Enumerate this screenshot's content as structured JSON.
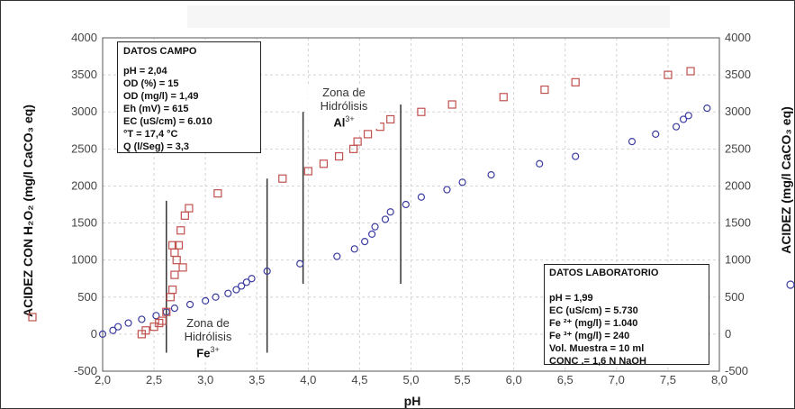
{
  "chart_data": {
    "type": "scatter",
    "xlabel": "pH",
    "ylabel_left": "ACIDEZ CON H₂O₂ (mg/l CaCO₃ eq)",
    "ylabel_right": "ACIDEZ (mg/l CaCO₃ eq)",
    "xlim": [
      2.0,
      8.0
    ],
    "ylim": [
      -500,
      4000
    ],
    "x_ticks": [
      "2,0",
      "2,5",
      "3,0",
      "3,5",
      "4,0",
      "4,5",
      "5,0",
      "5,5",
      "6,0",
      "6,5",
      "7,0",
      "7,5",
      "8,0"
    ],
    "y_ticks": [
      "-500",
      "0",
      "500",
      "1000",
      "1500",
      "2000",
      "2500",
      "3000",
      "3500",
      "4000"
    ],
    "grid": true,
    "series": [
      {
        "marker": "square",
        "color": "#c0504d",
        "points": [
          [
            2.38,
            0
          ],
          [
            2.42,
            50
          ],
          [
            2.5,
            100
          ],
          [
            2.55,
            150
          ],
          [
            2.58,
            180
          ],
          [
            2.62,
            300
          ],
          [
            2.66,
            500
          ],
          [
            2.68,
            600
          ],
          [
            2.7,
            800
          ],
          [
            2.72,
            1000
          ],
          [
            2.74,
            1200
          ],
          [
            2.76,
            1400
          ],
          [
            2.78,
            900
          ],
          [
            2.7,
            1100
          ],
          [
            2.68,
            1200
          ],
          [
            2.8,
            1600
          ],
          [
            2.84,
            1700
          ],
          [
            3.12,
            1900
          ],
          [
            3.75,
            2100
          ],
          [
            4.0,
            2200
          ],
          [
            4.15,
            2300
          ],
          [
            4.3,
            2400
          ],
          [
            4.44,
            2500
          ],
          [
            4.48,
            2600
          ],
          [
            4.58,
            2700
          ],
          [
            4.7,
            2800
          ],
          [
            4.8,
            2900
          ],
          [
            5.1,
            3000
          ],
          [
            5.4,
            3100
          ],
          [
            5.9,
            3200
          ],
          [
            6.3,
            3300
          ],
          [
            6.6,
            3400
          ],
          [
            7.5,
            3500
          ],
          [
            7.72,
            3550
          ]
        ]
      },
      {
        "marker": "circle",
        "color": "#3c3ca0",
        "points": [
          [
            2.0,
            0
          ],
          [
            2.1,
            50
          ],
          [
            2.15,
            100
          ],
          [
            2.25,
            150
          ],
          [
            2.38,
            200
          ],
          [
            2.52,
            250
          ],
          [
            2.62,
            300
          ],
          [
            2.7,
            350
          ],
          [
            2.85,
            400
          ],
          [
            3.0,
            450
          ],
          [
            3.1,
            500
          ],
          [
            3.22,
            550
          ],
          [
            3.3,
            600
          ],
          [
            3.35,
            650
          ],
          [
            3.4,
            700
          ],
          [
            3.45,
            750
          ],
          [
            3.6,
            850
          ],
          [
            3.92,
            950
          ],
          [
            4.28,
            1050
          ],
          [
            4.45,
            1150
          ],
          [
            4.55,
            1250
          ],
          [
            4.62,
            1350
          ],
          [
            4.65,
            1450
          ],
          [
            4.75,
            1550
          ],
          [
            4.8,
            1650
          ],
          [
            4.95,
            1750
          ],
          [
            5.1,
            1850
          ],
          [
            5.35,
            1950
          ],
          [
            5.5,
            2050
          ],
          [
            5.78,
            2150
          ],
          [
            6.25,
            2300
          ],
          [
            6.6,
            2400
          ],
          [
            7.15,
            2600
          ],
          [
            7.38,
            2700
          ],
          [
            7.58,
            2800
          ],
          [
            7.65,
            2900
          ],
          [
            7.7,
            2950
          ],
          [
            7.88,
            3050
          ]
        ]
      }
    ],
    "zone_lines": [
      {
        "x": 2.62,
        "y0": -250,
        "y1": 1800
      },
      {
        "x": 3.6,
        "y0": -250,
        "y1": 2100
      },
      {
        "x": 3.95,
        "y0": 680,
        "y1": 3000
      },
      {
        "x": 4.9,
        "y0": 680,
        "y1": 3100
      }
    ],
    "white_lines": [
      {
        "x": 2.88,
        "y0": -100,
        "y1": 1850
      },
      {
        "x": 3.47,
        "y0": 300,
        "y1": 2000
      }
    ]
  },
  "legend": {
    "left_marker": "square",
    "right_marker": "circle",
    "right_color": "#3c3ca0"
  },
  "datos_campo": {
    "title": "DATOS CAMPO",
    "lines": [
      "pH = 2,04",
      "OD (%) = 15",
      "OD (mg/l) = 1,49",
      "Eh (mV) = 615",
      "EC (uS/cm) = 6.010",
      "°T = 17,4 °C",
      "Q (l/Seg) = 3,3"
    ]
  },
  "datos_laboratorio": {
    "title": "DATOS LABORATORIO",
    "lines": [
      "pH = 1,99",
      "EC (uS/cm) = 5.730",
      "Fe ²⁺ (mg/l) = 1.040",
      "Fe ³⁺ (mg/l) = 240",
      "Vol. Muestra = 10 ml",
      "CONC .= 1,6 N  NaOH"
    ]
  },
  "zone_fe": {
    "line1": "Zona de",
    "line2": "Hidrólisis",
    "ion": "Fe",
    "charge": "3+"
  },
  "zone_al": {
    "line1": "Zona de",
    "line2": "Hidrólisis",
    "ion": "Al",
    "charge": "3+"
  }
}
